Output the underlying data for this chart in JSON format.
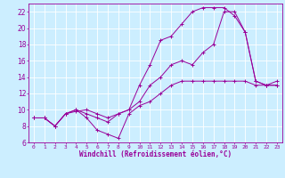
{
  "bg_color": "#cceeff",
  "line_color": "#990099",
  "grid_color": "#ffffff",
  "xlabel": "Windchill (Refroidissement éolien,°C)",
  "tick_color": "#990099",
  "xlim": [
    -0.5,
    23.5
  ],
  "ylim": [
    6,
    23
  ],
  "yticks": [
    6,
    8,
    10,
    12,
    14,
    16,
    18,
    20,
    22
  ],
  "xticks": [
    0,
    1,
    2,
    3,
    4,
    5,
    6,
    7,
    8,
    9,
    10,
    11,
    12,
    13,
    14,
    15,
    16,
    17,
    18,
    19,
    20,
    21,
    22,
    23
  ],
  "line1_x": [
    0,
    1,
    2,
    3,
    4,
    5,
    6,
    7,
    8,
    9,
    10,
    11,
    12,
    13,
    14,
    15,
    16,
    17,
    18,
    19,
    20,
    21,
    22,
    23
  ],
  "line1_y": [
    9,
    9,
    8,
    9.5,
    10,
    9,
    7.5,
    7,
    6.5,
    9.5,
    10.5,
    11,
    12,
    13,
    13.5,
    13.5,
    13.5,
    13.5,
    13.5,
    13.5,
    13.5,
    13,
    13,
    13.5
  ],
  "line2_x": [
    0,
    1,
    2,
    3,
    4,
    5,
    6,
    7,
    8,
    9,
    10,
    11,
    12,
    13,
    14,
    15,
    16,
    17,
    18,
    19,
    20,
    21,
    22,
    23
  ],
  "line2_y": [
    9,
    9,
    8,
    9.5,
    9.8,
    10,
    9.5,
    9.0,
    9.5,
    10,
    13,
    15.5,
    18.5,
    19,
    20.5,
    22,
    22.5,
    22.5,
    22.5,
    21.5,
    19.5,
    13.5,
    13,
    13
  ],
  "line3_x": [
    0,
    1,
    2,
    3,
    4,
    5,
    6,
    7,
    8,
    9,
    10,
    11,
    12,
    13,
    14,
    15,
    16,
    17,
    18,
    19,
    20,
    21,
    22,
    23
  ],
  "line3_y": [
    9,
    9,
    8,
    9.5,
    10,
    9.5,
    9.0,
    8.5,
    9.5,
    10,
    11,
    13,
    14,
    15.5,
    16,
    15.5,
    17,
    18,
    22,
    22,
    19.5,
    13.5,
    13,
    13
  ]
}
